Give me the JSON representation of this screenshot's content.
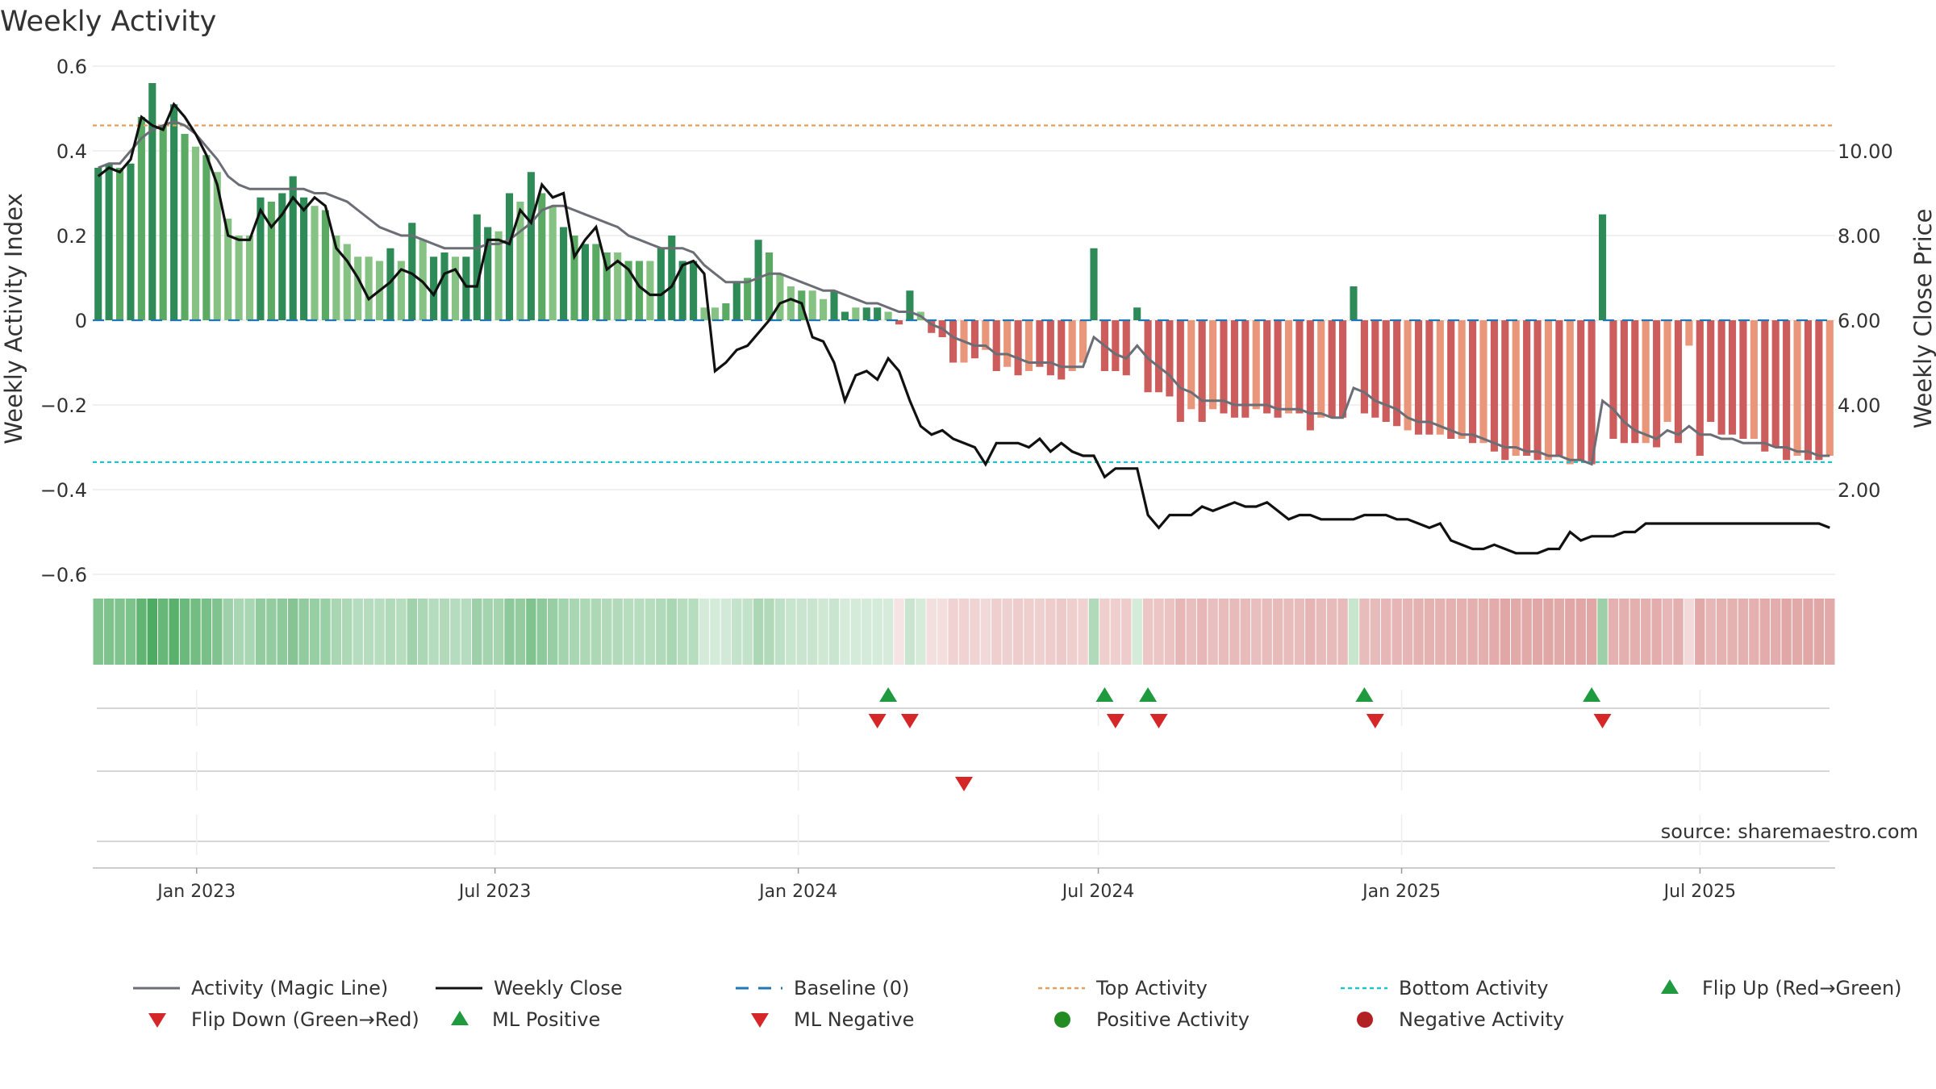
{
  "chart_data": {
    "type": "bar",
    "title": "Weekly Activity",
    "ylabel_left": "Weekly Activity Index",
    "ylabel_right": "Weekly Close Price",
    "ylim_left": [
      -0.6,
      0.6
    ],
    "ylim_right": [
      0.0,
      12.0
    ],
    "y_ticks_left": [
      "0.6",
      "0.4",
      "0.2",
      "0",
      "−0.2",
      "−0.4",
      "−0.6"
    ],
    "y_ticks_right": [
      "10.00",
      "8.00",
      "6.00",
      "4.00",
      "2.00"
    ],
    "x_ticks": [
      "Jan 2023",
      "Jul 2023",
      "Jan 2024",
      "Jul 2024",
      "Jan 2025",
      "Jul 2025"
    ],
    "x_start": "2022-10-30",
    "x_end": "2025-09-21",
    "top_activity": 0.46,
    "bottom_activity": -0.335,
    "activity": [
      0.36,
      0.37,
      0.36,
      0.37,
      0.48,
      0.56,
      0.46,
      0.51,
      0.44,
      0.41,
      0.39,
      0.35,
      0.24,
      0.2,
      0.2,
      0.29,
      0.28,
      0.3,
      0.34,
      0.29,
      0.27,
      0.26,
      0.2,
      0.18,
      0.15,
      0.15,
      0.14,
      0.17,
      0.14,
      0.23,
      0.19,
      0.15,
      0.16,
      0.15,
      0.15,
      0.25,
      0.22,
      0.21,
      0.3,
      0.28,
      0.35,
      0.3,
      0.27,
      0.22,
      0.2,
      0.18,
      0.18,
      0.16,
      0.16,
      0.14,
      0.14,
      0.14,
      0.17,
      0.2,
      0.14,
      0.14,
      0.03,
      0.03,
      0.04,
      0.09,
      0.1,
      0.19,
      0.16,
      0.11,
      0.08,
      0.07,
      0.07,
      0.05,
      0.07,
      0.02,
      0.03,
      0.03,
      0.03,
      0.02,
      -0.01,
      0.07,
      0.02,
      -0.03,
      -0.04,
      -0.1,
      -0.1,
      -0.09,
      -0.07,
      -0.12,
      -0.11,
      -0.13,
      -0.12,
      -0.11,
      -0.13,
      -0.14,
      -0.12,
      -0.1,
      0.17,
      -0.12,
      -0.12,
      -0.13,
      0.03,
      -0.17,
      -0.17,
      -0.18,
      -0.24,
      -0.21,
      -0.24,
      -0.21,
      -0.22,
      -0.23,
      -0.23,
      -0.21,
      -0.22,
      -0.23,
      -0.22,
      -0.22,
      -0.26,
      -0.23,
      -0.23,
      -0.23,
      0.08,
      -0.22,
      -0.23,
      -0.24,
      -0.25,
      -0.26,
      -0.27,
      -0.27,
      -0.27,
      -0.28,
      -0.28,
      -0.29,
      -0.29,
      -0.31,
      -0.33,
      -0.32,
      -0.32,
      -0.33,
      -0.33,
      -0.32,
      -0.34,
      -0.33,
      -0.34,
      0.25,
      -0.28,
      -0.29,
      -0.29,
      -0.29,
      -0.3,
      -0.24,
      -0.29,
      -0.06,
      -0.32,
      -0.24,
      -0.27,
      -0.27,
      -0.28,
      -0.28,
      -0.31,
      -0.3,
      -0.33,
      -0.32,
      -0.33,
      -0.33,
      -0.32
    ],
    "bar_shade": [
      "D",
      "D",
      "M",
      "D",
      "M",
      "D",
      "M",
      "D",
      "M",
      "L",
      "M",
      "L",
      "L",
      "L",
      "L",
      "D",
      "M",
      "D",
      "D",
      "D",
      "L",
      "M",
      "L",
      "L",
      "L",
      "L",
      "L",
      "D",
      "L",
      "D",
      "L",
      "D",
      "D",
      "L",
      "D",
      "D",
      "D",
      "L",
      "D",
      "L",
      "D",
      "M",
      "L",
      "D",
      "M",
      "D",
      "M",
      "M",
      "L",
      "M",
      "M",
      "L",
      "D",
      "D",
      "D",
      "D",
      "L",
      "L",
      "M",
      "D",
      "M",
      "D",
      "M",
      "L",
      "L",
      "M",
      "L",
      "L",
      "D",
      "D",
      "L",
      "D",
      "D",
      "L",
      "R",
      "D",
      "L",
      "R",
      "R",
      "R",
      "P",
      "R",
      "P",
      "R",
      "P",
      "R",
      "P",
      "R",
      "R",
      "R",
      "P",
      "P",
      "D",
      "R",
      "R",
      "R",
      "D",
      "R",
      "R",
      "R",
      "R",
      "P",
      "R",
      "P",
      "R",
      "R",
      "R",
      "P",
      "R",
      "R",
      "P",
      "R",
      "R",
      "P",
      "R",
      "R",
      "D",
      "R",
      "R",
      "R",
      "R",
      "P",
      "R",
      "R",
      "P",
      "R",
      "P",
      "R",
      "P",
      "R",
      "R",
      "P",
      "R",
      "R",
      "P",
      "R",
      "P",
      "R",
      "R",
      "D",
      "R",
      "R",
      "R",
      "P",
      "R",
      "P",
      "R",
      "P",
      "R",
      "R",
      "R",
      "R",
      "R",
      "P",
      "R",
      "R",
      "R",
      "P",
      "R",
      "R",
      "P"
    ],
    "magic_line": [
      0.36,
      0.37,
      0.37,
      0.4,
      0.43,
      0.45,
      0.46,
      0.47,
      0.46,
      0.44,
      0.41,
      0.38,
      0.34,
      0.32,
      0.31,
      0.31,
      0.31,
      0.31,
      0.31,
      0.31,
      0.3,
      0.3,
      0.29,
      0.28,
      0.26,
      0.24,
      0.22,
      0.21,
      0.2,
      0.2,
      0.19,
      0.18,
      0.17,
      0.17,
      0.17,
      0.17,
      0.18,
      0.18,
      0.19,
      0.21,
      0.23,
      0.26,
      0.27,
      0.27,
      0.26,
      0.25,
      0.24,
      0.23,
      0.22,
      0.2,
      0.19,
      0.18,
      0.17,
      0.17,
      0.17,
      0.16,
      0.13,
      0.11,
      0.09,
      0.09,
      0.09,
      0.1,
      0.11,
      0.11,
      0.1,
      0.09,
      0.08,
      0.07,
      0.07,
      0.06,
      0.05,
      0.04,
      0.04,
      0.03,
      0.02,
      0.02,
      0.01,
      -0.01,
      -0.02,
      -0.04,
      -0.05,
      -0.06,
      -0.06,
      -0.08,
      -0.08,
      -0.09,
      -0.1,
      -0.1,
      -0.1,
      -0.11,
      -0.11,
      -0.11,
      -0.04,
      -0.06,
      -0.08,
      -0.09,
      -0.06,
      -0.09,
      -0.11,
      -0.13,
      -0.16,
      -0.17,
      -0.19,
      -0.19,
      -0.19,
      -0.2,
      -0.2,
      -0.2,
      -0.2,
      -0.21,
      -0.21,
      -0.21,
      -0.22,
      -0.22,
      -0.23,
      -0.23,
      -0.16,
      -0.17,
      -0.19,
      -0.2,
      -0.21,
      -0.23,
      -0.24,
      -0.24,
      -0.25,
      -0.26,
      -0.27,
      -0.27,
      -0.28,
      -0.29,
      -0.3,
      -0.3,
      -0.31,
      -0.31,
      -0.32,
      -0.32,
      -0.33,
      -0.33,
      -0.34,
      -0.19,
      -0.21,
      -0.24,
      -0.26,
      -0.27,
      -0.28,
      -0.26,
      -0.27,
      -0.25,
      -0.27,
      -0.27,
      -0.28,
      -0.28,
      -0.29,
      -0.29,
      -0.29,
      -0.3,
      -0.3,
      -0.31,
      -0.31,
      -0.32,
      -0.32
    ],
    "weekly_close": [
      9.4,
      9.6,
      9.5,
      9.8,
      10.8,
      10.6,
      10.5,
      11.1,
      10.8,
      10.4,
      9.9,
      9.2,
      8.0,
      7.9,
      7.9,
      8.6,
      8.2,
      8.5,
      8.9,
      8.6,
      8.9,
      8.7,
      7.7,
      7.4,
      7.0,
      6.5,
      6.7,
      6.9,
      7.2,
      7.1,
      6.9,
      6.6,
      7.1,
      7.2,
      6.8,
      6.8,
      7.9,
      7.9,
      7.8,
      8.6,
      8.3,
      9.2,
      8.9,
      9.0,
      7.5,
      7.9,
      8.2,
      7.2,
      7.4,
      7.2,
      6.8,
      6.6,
      6.6,
      6.8,
      7.3,
      7.4,
      7.1,
      4.8,
      5.0,
      5.3,
      5.4,
      5.7,
      6.0,
      6.4,
      6.5,
      6.4,
      5.6,
      5.5,
      5.0,
      4.1,
      4.7,
      4.8,
      4.6,
      5.1,
      4.8,
      4.1,
      3.5,
      3.3,
      3.4,
      3.2,
      3.1,
      3.0,
      2.6,
      3.1,
      3.1,
      3.1,
      3.0,
      3.2,
      2.9,
      3.1,
      2.9,
      2.8,
      2.8,
      2.3,
      2.5,
      2.5,
      2.5,
      1.4,
      1.1,
      1.4,
      1.4,
      1.4,
      1.6,
      1.5,
      1.6,
      1.7,
      1.6,
      1.6,
      1.7,
      1.5,
      1.3,
      1.4,
      1.4,
      1.3,
      1.3,
      1.3,
      1.3,
      1.4,
      1.4,
      1.4,
      1.3,
      1.3,
      1.2,
      1.1,
      1.2,
      0.8,
      0.7,
      0.6,
      0.6,
      0.7,
      0.6,
      0.5,
      0.5,
      0.5,
      0.6,
      0.6,
      1.0,
      0.8,
      0.9,
      0.9,
      0.9,
      1.0,
      1.0,
      1.2,
      1.2,
      1.2,
      1.2,
      1.2,
      1.2,
      1.2,
      1.2,
      1.2,
      1.2,
      1.2,
      1.2,
      1.2,
      1.2,
      1.2,
      1.2,
      1.2,
      1.1
    ],
    "flip_up_weeks": [
      73,
      93,
      97,
      117,
      138
    ],
    "flip_down_weeks": [
      72,
      75,
      94,
      98,
      118,
      139
    ],
    "ml_negative_weeks": [
      80
    ],
    "source": "source: sharemaestro.com",
    "legend": [
      {
        "label": "Activity (Magic Line)"
      },
      {
        "label": "Weekly Close"
      },
      {
        "label": "Baseline (0)"
      },
      {
        "label": "Top Activity"
      },
      {
        "label": "Bottom Activity"
      },
      {
        "label": "Flip Up (Red→Green)"
      },
      {
        "label": "Flip Down (Green→Red)"
      },
      {
        "label": "ML Positive"
      },
      {
        "label": "ML Negative"
      },
      {
        "label": "Positive Activity"
      },
      {
        "label": "Negative Activity"
      }
    ],
    "colors": {
      "dark_green": "#2e8b57",
      "mid_green": "#5aaa64",
      "light_green": "#86c284",
      "dark_red": "#cd5c5c",
      "light_red": "#e9967a",
      "magic_line": "#6b6e75",
      "weekly_close": "#111111",
      "baseline": "#1f77b4",
      "top_activity": "#e0a060",
      "bottom_activity": "#22c2cc",
      "flip_up": "#1f9a3f",
      "flip_down": "#d62728",
      "positive_dot": "#228b22",
      "negative_dot": "#b22222",
      "grid": "#e6e6e6"
    }
  }
}
